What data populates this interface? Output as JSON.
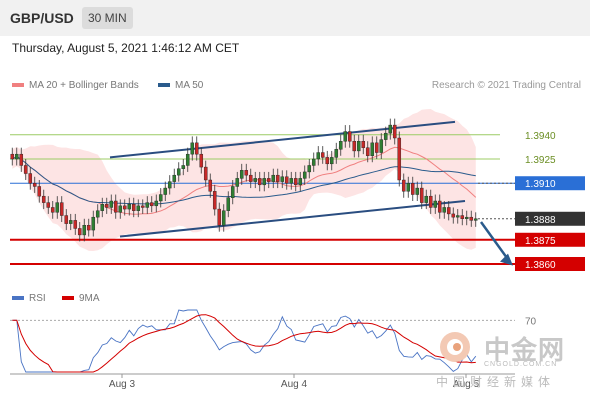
{
  "header": {
    "symbol": "GBP/USD",
    "timeframe": "30 MIN"
  },
  "datetime": "Thursday, August 5, 2021 1:46:12 AM CET",
  "legend": {
    "ma20_label": "MA 20 + Bollinger Bands",
    "ma50_label": "MA 50"
  },
  "credit": "Research © 2021 Trading Central",
  "colors": {
    "ma20": "#f08080",
    "ma50": "#2a5b8c",
    "resistance": "#9ccc65",
    "pivot": "#2a6fd6",
    "support": "#d40000",
    "current": "#333333",
    "band": "#fde4e4",
    "up": "#2e7d32",
    "down": "#c62828"
  },
  "chart_data": {
    "type": "candlestick",
    "ylim": [
      1.3847,
      1.3964
    ],
    "x_ticks": [
      "Aug 3",
      "Aug 4",
      "Aug 5"
    ],
    "price_levels": [
      {
        "value": 1.394,
        "label": "1.3940",
        "kind": "resistance"
      },
      {
        "value": 1.3925,
        "label": "1.3925",
        "kind": "resistance"
      },
      {
        "value": 1.391,
        "label": "1.3910",
        "kind": "pivot"
      },
      {
        "value": 1.3888,
        "label": "1.3888",
        "kind": "current"
      },
      {
        "value": 1.3875,
        "label": "1.3875",
        "kind": "support"
      },
      {
        "value": 1.386,
        "label": "1.3860",
        "kind": "support"
      }
    ],
    "close": [
      1.3925,
      1.3928,
      1.3921,
      1.3916,
      1.391,
      1.3908,
      1.3902,
      1.3898,
      1.3895,
      1.3892,
      1.3898,
      1.389,
      1.3885,
      1.3887,
      1.3882,
      1.3878,
      1.3884,
      1.3881,
      1.3889,
      1.3893,
      1.3897,
      1.3895,
      1.3899,
      1.3892,
      1.3896,
      1.3894,
      1.3897,
      1.3893,
      1.3896,
      1.3895,
      1.3898,
      1.3896,
      1.3899,
      1.3903,
      1.3907,
      1.3911,
      1.3915,
      1.3919,
      1.3921,
      1.3928,
      1.3935,
      1.3928,
      1.392,
      1.3912,
      1.3905,
      1.3894,
      1.3884,
      1.3893,
      1.3901,
      1.3908,
      1.3913,
      1.3918,
      1.3915,
      1.3911,
      1.3913,
      1.3909,
      1.3913,
      1.3911,
      1.3915,
      1.3911,
      1.3914,
      1.391,
      1.3913,
      1.3909,
      1.3913,
      1.3917,
      1.3921,
      1.3925,
      1.3929,
      1.3926,
      1.3922,
      1.3926,
      1.3931,
      1.3936,
      1.3942,
      1.3936,
      1.393,
      1.3936,
      1.3932,
      1.3927,
      1.3935,
      1.3929,
      1.3937,
      1.3941,
      1.3946,
      1.3938,
      1.3912,
      1.3905,
      1.391,
      1.3903,
      1.3907,
      1.3898,
      1.3902,
      1.3895,
      1.3899,
      1.3892,
      1.3895,
      1.3891,
      1.3889,
      1.389,
      1.3888,
      1.3889,
      1.3887,
      1.3888
    ],
    "rsi_label": "RSI",
    "rsi_ma_label": "9MA",
    "rsi_levels": [
      70
    ],
    "rsi_level_labels": [
      "70"
    ],
    "rsi_ylim": [
      20,
      80
    ]
  },
  "watermark": {
    "cn": "中金网",
    "site": "CNGOLD.COM.CN",
    "sub": "中国财经新媒体"
  }
}
